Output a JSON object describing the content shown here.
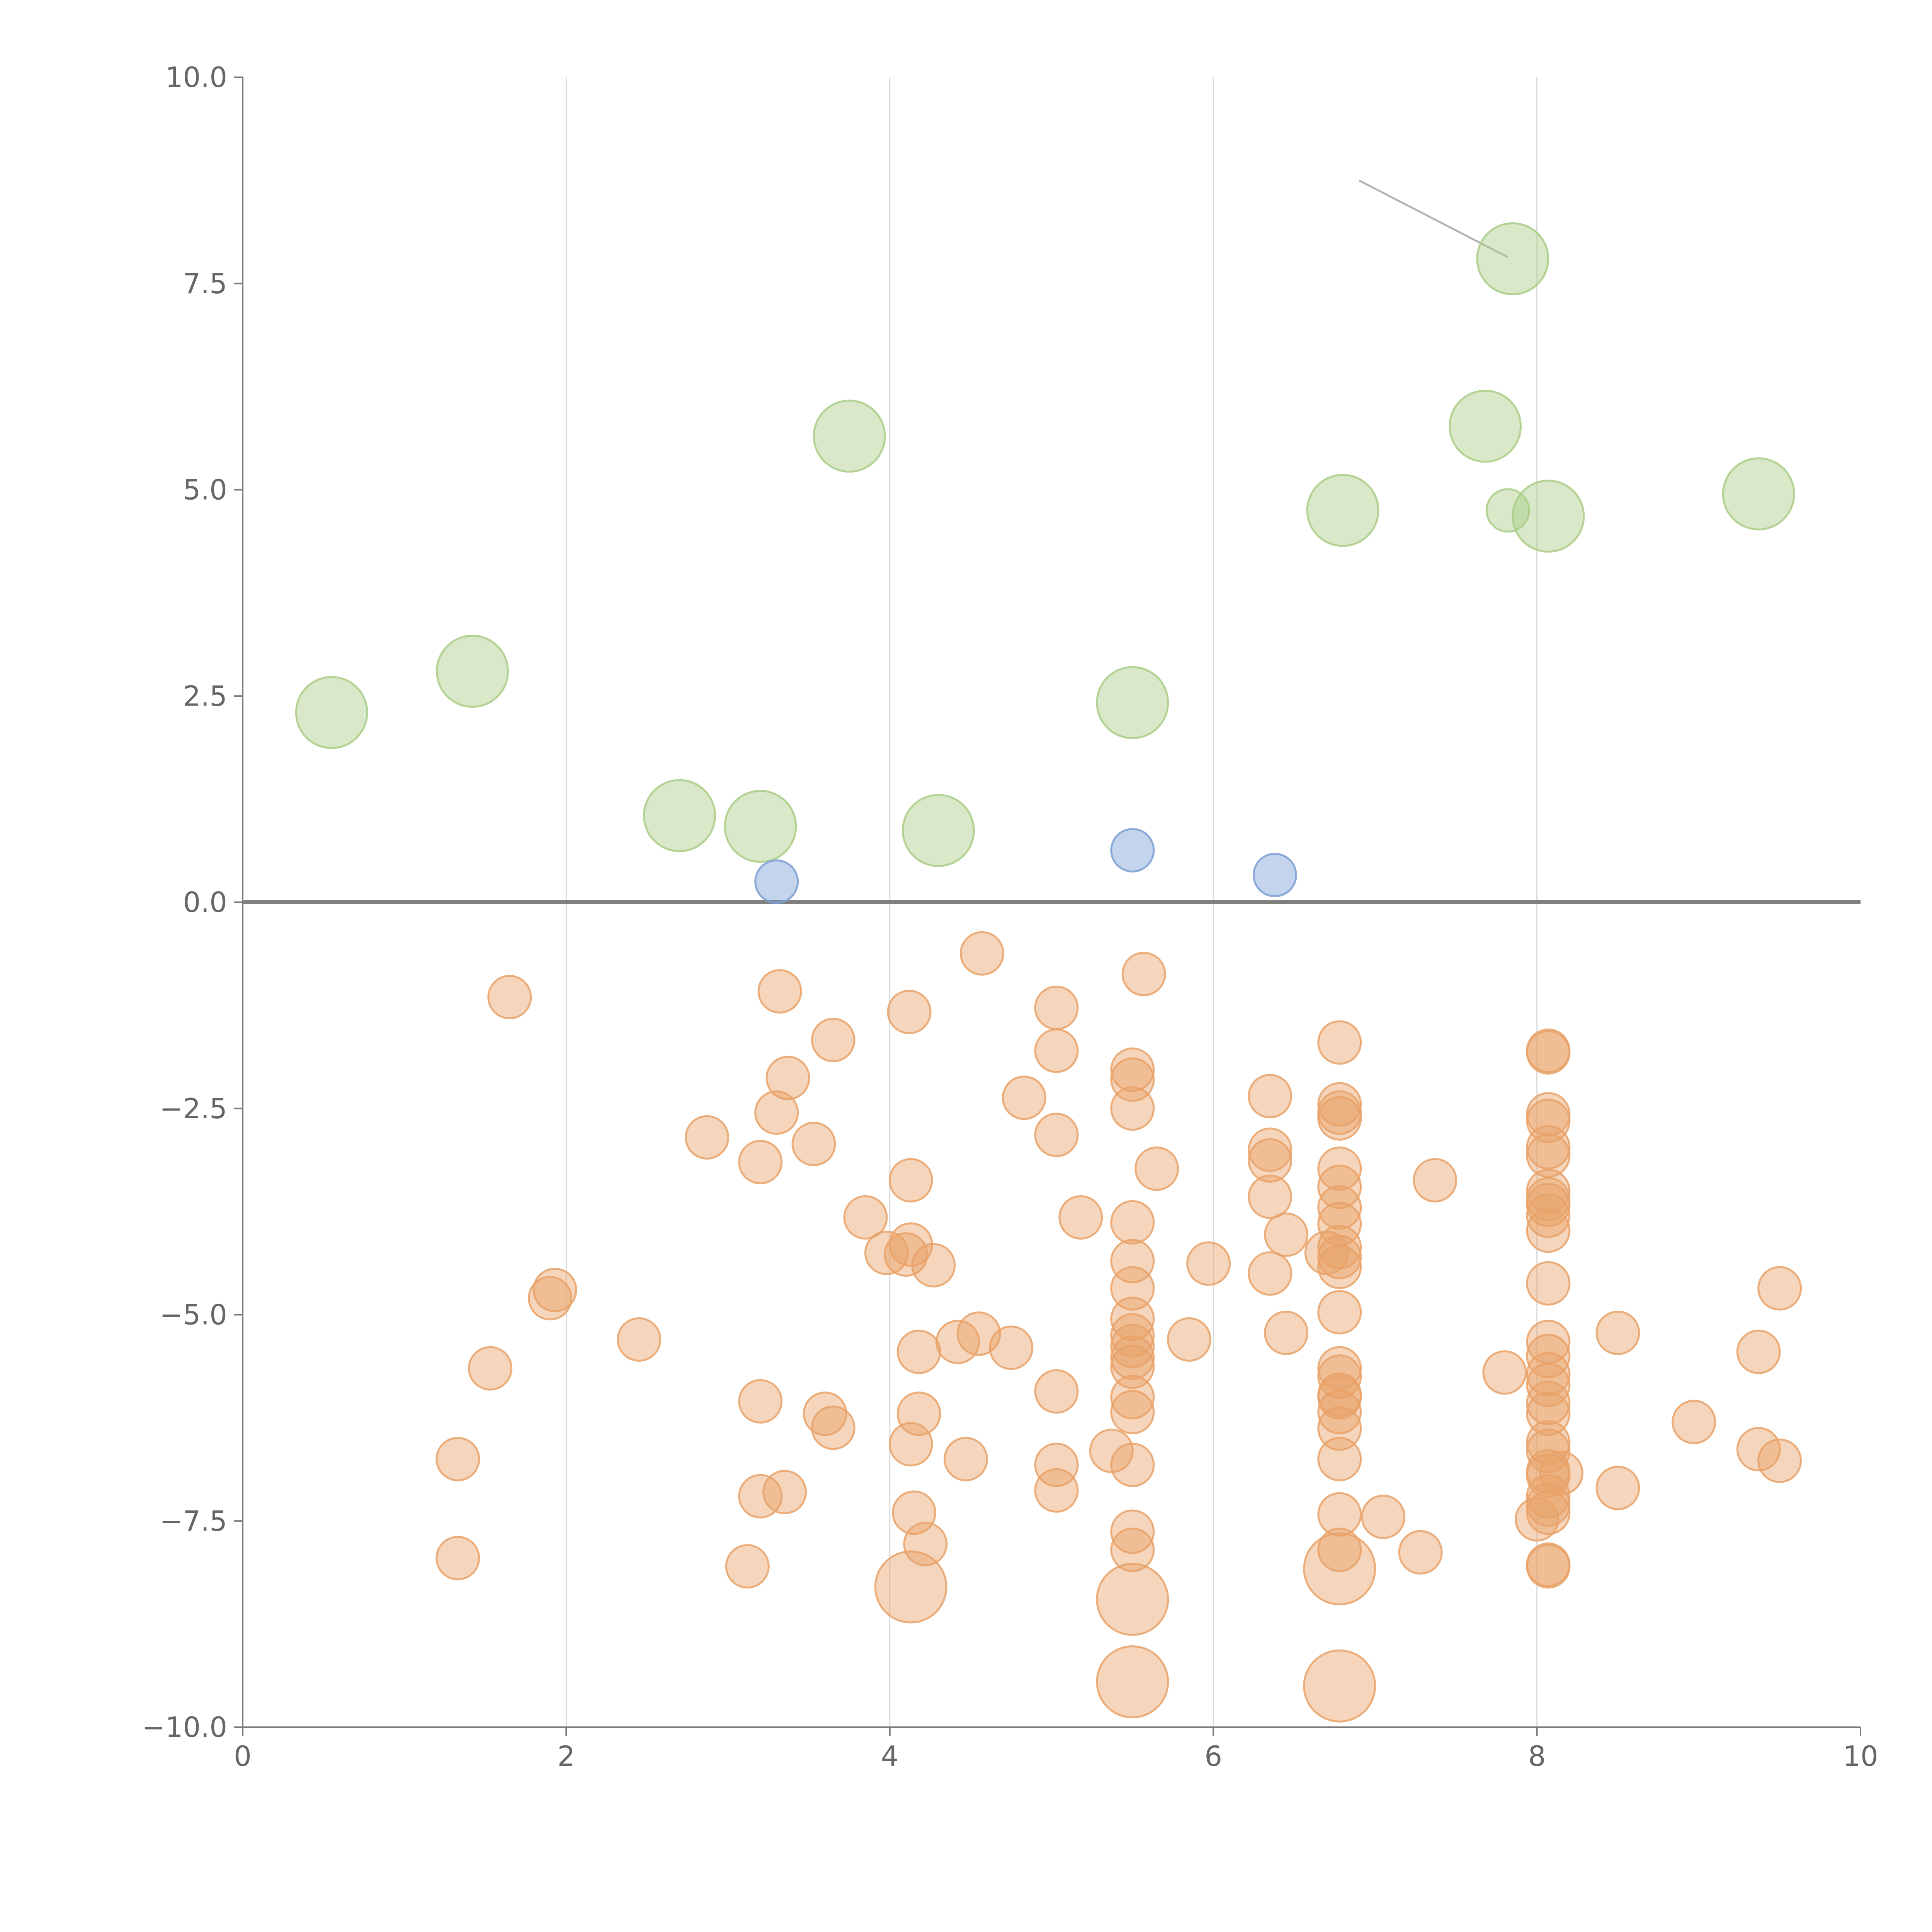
{
  "chart_data": {
    "type": "scatter",
    "title": "",
    "xlabel": "",
    "ylabel": "",
    "xlim": [
      0,
      10
    ],
    "ylim": [
      -10,
      10
    ],
    "x_ticks": [
      "0",
      "2",
      "4",
      "6",
      "8",
      "10"
    ],
    "y_ticks": [
      "10.0",
      "7.5",
      "5.0",
      "2.5",
      "0.0",
      "−2.5",
      "−5.0",
      "−7.5",
      "−10.0"
    ],
    "x_grid": true,
    "y_grid": false,
    "reference_line_y": 0,
    "series": [
      {
        "color": "#a9cc85",
        "points": [
          {
            "x": 0.55,
            "y": 2.3,
            "size": "large"
          },
          {
            "x": 1.42,
            "y": 2.8,
            "size": "large"
          },
          {
            "x": 2.7,
            "y": 1.05,
            "size": "large"
          },
          {
            "x": 3.2,
            "y": 0.92,
            "size": "large"
          },
          {
            "x": 3.75,
            "y": 5.65,
            "size": "large"
          },
          {
            "x": 4.3,
            "y": 0.87,
            "size": "large"
          },
          {
            "x": 5.5,
            "y": 2.42,
            "size": "large"
          },
          {
            "x": 6.8,
            "y": 4.75,
            "size": "large"
          },
          {
            "x": 7.68,
            "y": 5.77,
            "size": "large"
          },
          {
            "x": 7.85,
            "y": 7.8,
            "size": "large"
          },
          {
            "x": 7.82,
            "y": 4.75,
            "size": "small"
          },
          {
            "x": 8.07,
            "y": 4.68,
            "size": "large"
          },
          {
            "x": 9.37,
            "y": 4.95,
            "size": "large"
          }
        ]
      },
      {
        "color": "#7b9fd4",
        "points": [
          {
            "x": 3.3,
            "y": 0.25,
            "size": "small"
          },
          {
            "x": 5.5,
            "y": 0.63,
            "size": "small"
          },
          {
            "x": 6.38,
            "y": 0.33,
            "size": "small"
          }
        ]
      },
      {
        "color": "#e9a268",
        "points": [
          {
            "x": 1.65,
            "y": -1.15,
            "size": "small"
          },
          {
            "x": 1.33,
            "y": -6.75,
            "size": "small"
          },
          {
            "x": 1.33,
            "y": -7.95,
            "size": "small"
          },
          {
            "x": 1.53,
            "y": -5.65,
            "size": "small"
          },
          {
            "x": 1.93,
            "y": -4.7,
            "size": "small"
          },
          {
            "x": 1.9,
            "y": -4.8,
            "size": "small"
          },
          {
            "x": 2.45,
            "y": -5.3,
            "size": "small"
          },
          {
            "x": 2.87,
            "y": -2.85,
            "size": "small"
          },
          {
            "x": 3.12,
            "y": -8.05,
            "size": "small"
          },
          {
            "x": 3.2,
            "y": -3.15,
            "size": "small"
          },
          {
            "x": 3.2,
            "y": -6.05,
            "size": "small"
          },
          {
            "x": 3.2,
            "y": -7.2,
            "size": "small"
          },
          {
            "x": 3.35,
            "y": -7.15,
            "size": "small"
          },
          {
            "x": 3.32,
            "y": -1.08,
            "size": "small"
          },
          {
            "x": 3.37,
            "y": -2.13,
            "size": "small"
          },
          {
            "x": 3.3,
            "y": -2.55,
            "size": "small"
          },
          {
            "x": 3.53,
            "y": -2.93,
            "size": "small"
          },
          {
            "x": 3.6,
            "y": -6.2,
            "size": "small"
          },
          {
            "x": 3.65,
            "y": -6.37,
            "size": "small"
          },
          {
            "x": 3.65,
            "y": -1.67,
            "size": "small"
          },
          {
            "x": 3.85,
            "y": -3.82,
            "size": "small"
          },
          {
            "x": 3.98,
            "y": -4.25,
            "size": "small"
          },
          {
            "x": 4.12,
            "y": -1.33,
            "size": "small"
          },
          {
            "x": 4.13,
            "y": -3.37,
            "size": "small"
          },
          {
            "x": 4.13,
            "y": -4.15,
            "size": "small"
          },
          {
            "x": 4.1,
            "y": -4.27,
            "size": "small"
          },
          {
            "x": 4.13,
            "y": -6.57,
            "size": "small"
          },
          {
            "x": 4.15,
            "y": -7.4,
            "size": "small"
          },
          {
            "x": 4.18,
            "y": -5.45,
            "size": "small"
          },
          {
            "x": 4.18,
            "y": -6.2,
            "size": "small"
          },
          {
            "x": 4.22,
            "y": -7.78,
            "size": "small"
          },
          {
            "x": 4.27,
            "y": -4.4,
            "size": "small"
          },
          {
            "x": 4.13,
            "y": -8.3,
            "size": "large"
          },
          {
            "x": 4.42,
            "y": -5.33,
            "size": "small"
          },
          {
            "x": 4.47,
            "y": -6.75,
            "size": "small"
          },
          {
            "x": 4.55,
            "y": -5.23,
            "size": "small"
          },
          {
            "x": 4.57,
            "y": -0.62,
            "size": "small"
          },
          {
            "x": 4.75,
            "y": -5.4,
            "size": "small"
          },
          {
            "x": 4.83,
            "y": -2.37,
            "size": "small"
          },
          {
            "x": 5.03,
            "y": -1.28,
            "size": "small"
          },
          {
            "x": 5.03,
            "y": -1.8,
            "size": "small"
          },
          {
            "x": 5.03,
            "y": -2.82,
            "size": "small"
          },
          {
            "x": 5.03,
            "y": -5.93,
            "size": "small"
          },
          {
            "x": 5.03,
            "y": -6.82,
            "size": "small"
          },
          {
            "x": 5.03,
            "y": -7.13,
            "size": "small"
          },
          {
            "x": 5.18,
            "y": -3.82,
            "size": "small"
          },
          {
            "x": 5.37,
            "y": -6.65,
            "size": "small"
          },
          {
            "x": 5.5,
            "y": -2.03,
            "size": "small"
          },
          {
            "x": 5.5,
            "y": -2.15,
            "size": "small"
          },
          {
            "x": 5.5,
            "y": -2.5,
            "size": "small"
          },
          {
            "x": 5.5,
            "y": -3.88,
            "size": "small"
          },
          {
            "x": 5.5,
            "y": -4.35,
            "size": "small"
          },
          {
            "x": 5.5,
            "y": -4.68,
            "size": "small"
          },
          {
            "x": 5.5,
            "y": -5.05,
            "size": "small"
          },
          {
            "x": 5.5,
            "y": -5.25,
            "size": "small"
          },
          {
            "x": 5.5,
            "y": -5.38,
            "size": "small"
          },
          {
            "x": 5.5,
            "y": -5.52,
            "size": "small"
          },
          {
            "x": 5.5,
            "y": -5.63,
            "size": "small"
          },
          {
            "x": 5.5,
            "y": -6.0,
            "size": "small"
          },
          {
            "x": 5.5,
            "y": -6.18,
            "size": "small"
          },
          {
            "x": 5.5,
            "y": -6.82,
            "size": "small"
          },
          {
            "x": 5.5,
            "y": -7.63,
            "size": "small"
          },
          {
            "x": 5.5,
            "y": -7.85,
            "size": "small"
          },
          {
            "x": 5.5,
            "y": -8.45,
            "size": "large"
          },
          {
            "x": 5.5,
            "y": -9.45,
            "size": "large"
          },
          {
            "x": 5.57,
            "y": -0.87,
            "size": "small"
          },
          {
            "x": 5.65,
            "y": -3.23,
            "size": "small"
          },
          {
            "x": 5.85,
            "y": -5.3,
            "size": "small"
          },
          {
            "x": 5.97,
            "y": -4.38,
            "size": "small"
          },
          {
            "x": 6.35,
            "y": -2.35,
            "size": "small"
          },
          {
            "x": 6.35,
            "y": -3.0,
            "size": "small"
          },
          {
            "x": 6.35,
            "y": -3.13,
            "size": "small"
          },
          {
            "x": 6.35,
            "y": -3.57,
            "size": "small"
          },
          {
            "x": 6.35,
            "y": -4.5,
            "size": "small"
          },
          {
            "x": 6.45,
            "y": -4.03,
            "size": "small"
          },
          {
            "x": 6.45,
            "y": -5.22,
            "size": "small"
          },
          {
            "x": 6.7,
            "y": -4.25,
            "size": "small"
          },
          {
            "x": 6.78,
            "y": -1.7,
            "size": "small"
          },
          {
            "x": 6.78,
            "y": -2.45,
            "size": "small"
          },
          {
            "x": 6.78,
            "y": -2.55,
            "size": "small"
          },
          {
            "x": 6.78,
            "y": -2.62,
            "size": "small"
          },
          {
            "x": 6.78,
            "y": -3.23,
            "size": "small"
          },
          {
            "x": 6.78,
            "y": -3.45,
            "size": "small"
          },
          {
            "x": 6.78,
            "y": -3.7,
            "size": "small"
          },
          {
            "x": 6.78,
            "y": -3.9,
            "size": "small"
          },
          {
            "x": 6.78,
            "y": -4.18,
            "size": "small"
          },
          {
            "x": 6.78,
            "y": -4.3,
            "size": "small"
          },
          {
            "x": 6.78,
            "y": -4.42,
            "size": "small"
          },
          {
            "x": 6.78,
            "y": -4.97,
            "size": "small"
          },
          {
            "x": 6.78,
            "y": -5.65,
            "size": "small"
          },
          {
            "x": 6.78,
            "y": -5.75,
            "size": "small"
          },
          {
            "x": 6.78,
            "y": -5.97,
            "size": "small"
          },
          {
            "x": 6.78,
            "y": -6.0,
            "size": "small"
          },
          {
            "x": 6.78,
            "y": -6.18,
            "size": "small"
          },
          {
            "x": 6.78,
            "y": -6.38,
            "size": "small"
          },
          {
            "x": 6.78,
            "y": -6.75,
            "size": "small"
          },
          {
            "x": 6.78,
            "y": -7.42,
            "size": "small"
          },
          {
            "x": 6.78,
            "y": -7.85,
            "size": "small"
          },
          {
            "x": 6.78,
            "y": -8.08,
            "size": "large"
          },
          {
            "x": 6.78,
            "y": -9.5,
            "size": "large"
          },
          {
            "x": 7.05,
            "y": -7.45,
            "size": "small"
          },
          {
            "x": 7.28,
            "y": -7.88,
            "size": "small"
          },
          {
            "x": 7.37,
            "y": -3.37,
            "size": "small"
          },
          {
            "x": 7.8,
            "y": -5.7,
            "size": "small"
          },
          {
            "x": 8.0,
            "y": -7.48,
            "size": "small"
          },
          {
            "x": 8.07,
            "y": -1.8,
            "size": "small"
          },
          {
            "x": 8.07,
            "y": -1.82,
            "size": "small"
          },
          {
            "x": 8.07,
            "y": -2.57,
            "size": "small"
          },
          {
            "x": 8.07,
            "y": -2.65,
            "size": "small"
          },
          {
            "x": 8.07,
            "y": -2.97,
            "size": "small"
          },
          {
            "x": 8.07,
            "y": -3.07,
            "size": "small"
          },
          {
            "x": 8.07,
            "y": -3.5,
            "size": "small"
          },
          {
            "x": 8.07,
            "y": -3.6,
            "size": "small"
          },
          {
            "x": 8.07,
            "y": -3.67,
            "size": "small"
          },
          {
            "x": 8.07,
            "y": -3.8,
            "size": "small"
          },
          {
            "x": 8.07,
            "y": -3.98,
            "size": "small"
          },
          {
            "x": 8.07,
            "y": -4.62,
            "size": "small"
          },
          {
            "x": 8.07,
            "y": -5.33,
            "size": "small"
          },
          {
            "x": 8.07,
            "y": -5.5,
            "size": "small"
          },
          {
            "x": 8.07,
            "y": -5.72,
            "size": "small"
          },
          {
            "x": 8.07,
            "y": -5.85,
            "size": "small"
          },
          {
            "x": 8.07,
            "y": -6.07,
            "size": "small"
          },
          {
            "x": 8.07,
            "y": -6.2,
            "size": "small"
          },
          {
            "x": 8.07,
            "y": -6.55,
            "size": "small"
          },
          {
            "x": 8.07,
            "y": -6.65,
            "size": "small"
          },
          {
            "x": 8.07,
            "y": -6.9,
            "size": "small"
          },
          {
            "x": 8.07,
            "y": -6.95,
            "size": "small"
          },
          {
            "x": 8.15,
            "y": -6.92,
            "size": "small"
          },
          {
            "x": 8.07,
            "y": -7.2,
            "size": "small"
          },
          {
            "x": 8.07,
            "y": -7.3,
            "size": "small"
          },
          {
            "x": 8.07,
            "y": -7.4,
            "size": "small"
          },
          {
            "x": 8.07,
            "y": -8.03,
            "size": "small"
          },
          {
            "x": 8.07,
            "y": -8.05,
            "size": "small"
          },
          {
            "x": 8.5,
            "y": -5.22,
            "size": "small"
          },
          {
            "x": 8.5,
            "y": -7.1,
            "size": "small"
          },
          {
            "x": 8.97,
            "y": -6.3,
            "size": "small"
          },
          {
            "x": 9.37,
            "y": -5.45,
            "size": "small"
          },
          {
            "x": 9.37,
            "y": -6.63,
            "size": "small"
          },
          {
            "x": 9.5,
            "y": -4.68,
            "size": "small"
          },
          {
            "x": 9.5,
            "y": -6.77,
            "size": "small"
          }
        ]
      }
    ]
  }
}
